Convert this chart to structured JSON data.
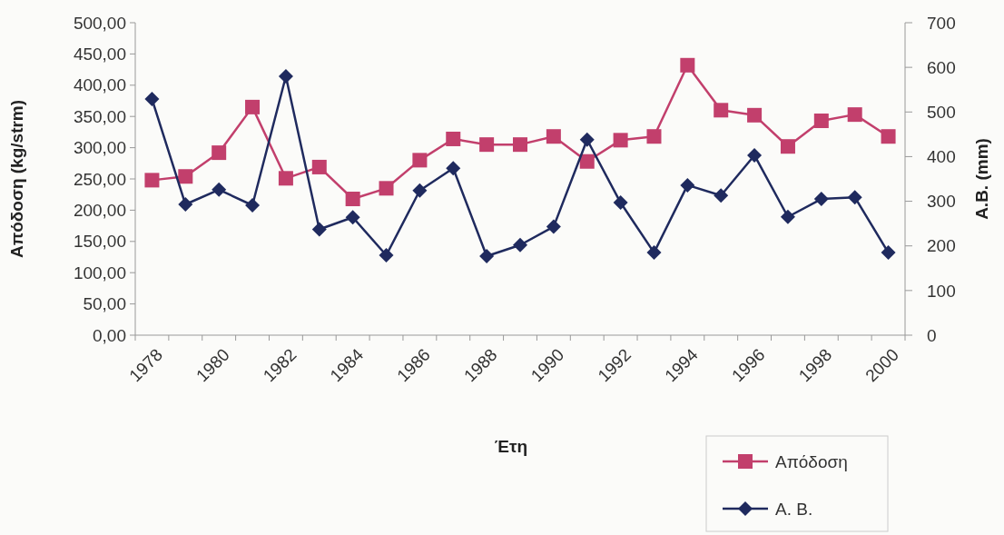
{
  "chart_data": {
    "type": "line",
    "categories": [
      "1978",
      null,
      "1980",
      null,
      "1982",
      null,
      "1984",
      null,
      "1986",
      null,
      "1988",
      null,
      "1990",
      null,
      "1992",
      null,
      "1994",
      null,
      "1996",
      null,
      "1998",
      null,
      "2000"
    ],
    "xlabel": "Έτη",
    "ylabel": "Απόδοση (kg/strm)",
    "y2label": "A.B. (mm)",
    "series": [
      {
        "name": "Απόδοση",
        "color": "#c23f6c",
        "marker": "square",
        "values": [
          248,
          254,
          292,
          365,
          251,
          269,
          218,
          235,
          280,
          314,
          305,
          305,
          318,
          278,
          312,
          318,
          432,
          360,
          352,
          302,
          343,
          353,
          318
        ]
      },
      {
        "name": "A. B.",
        "color": "#1f2a5e",
        "marker": "diamond",
        "axis": "y2",
        "values": [
          529,
          293,
          326,
          291,
          580,
          237,
          264,
          179,
          324,
          374,
          177,
          202,
          243,
          438,
          297,
          185,
          336,
          313,
          403,
          265,
          305,
          309,
          185
        ]
      }
    ],
    "ylim": [
      0,
      500
    ],
    "yticks": [
      {
        "value": 0,
        "label": "0,00"
      },
      {
        "value": 50,
        "label": "50,00"
      },
      {
        "value": 100,
        "label": "100,00"
      },
      {
        "value": 150,
        "label": "150,00"
      },
      {
        "value": 200,
        "label": "200,00"
      },
      {
        "value": 250,
        "label": "250,00"
      },
      {
        "value": 300,
        "label": "300,00"
      },
      {
        "value": 350,
        "label": "350,00"
      },
      {
        "value": 400,
        "label": "400,00"
      },
      {
        "value": 450,
        "label": "450,00"
      },
      {
        "value": 500,
        "label": "500,00"
      }
    ],
    "y2lim": [
      0,
      700
    ],
    "y2ticks": [
      0,
      100,
      200,
      300,
      400,
      500,
      600,
      700
    ],
    "legend": "bottom right",
    "grid": false
  }
}
